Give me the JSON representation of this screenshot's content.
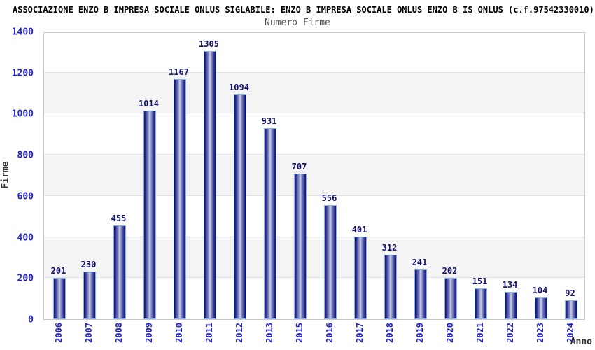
{
  "header": {
    "title": "ASSOCIAZIONE ENZO B IMPRESA SOCIALE ONLUS SIGLABILE: ENZO B IMPRESA SOCIALE ONLUS ENZO B IS ONLUS (c.f.97542330010)"
  },
  "chart_data": {
    "type": "bar",
    "title": "Numero Firme",
    "xlabel": "Anno",
    "ylabel": "Firme",
    "categories": [
      "2006",
      "2007",
      "2008",
      "2009",
      "2010",
      "2011",
      "2012",
      "2013",
      "2015",
      "2016",
      "2017",
      "2018",
      "2019",
      "2020",
      "2021",
      "2022",
      "2023",
      "2024"
    ],
    "values": [
      201,
      230,
      455,
      1014,
      1167,
      1305,
      1094,
      931,
      707,
      556,
      401,
      312,
      241,
      202,
      151,
      134,
      104,
      92
    ],
    "ylim": [
      0,
      1400
    ],
    "yticks": [
      0,
      200,
      400,
      600,
      800,
      1000,
      1200,
      1400
    ],
    "grid": "alternating horizontal bands every 200 units",
    "legend": "none",
    "colors": {
      "bar_edge": "#10106e",
      "bar_center": "#d2d6ec",
      "bar_border": "#82b4e8",
      "tick_label": "#2222cc",
      "value_label": "#111170",
      "band_gray": "#f4f4f4",
      "frame": "#c9c9c9",
      "subtitle": "#555555",
      "title": "#000000"
    }
  }
}
